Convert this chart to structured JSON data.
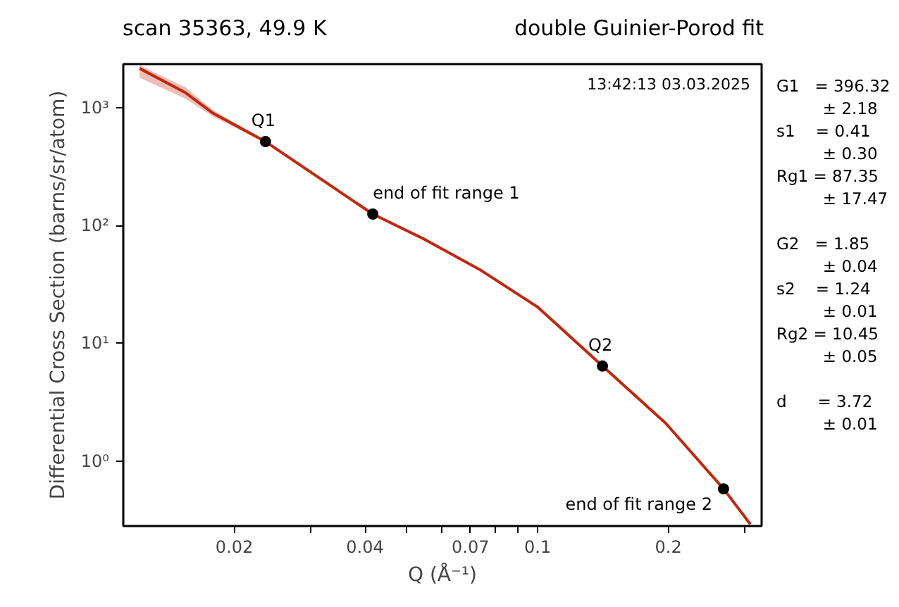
{
  "chart_data": {
    "type": "line",
    "title": "scan 35363, 49.9 K",
    "subtitle": "double Guinier-Porod fit",
    "xlabel": "Q (Å⁻¹)",
    "ylabel": "Differential Cross Section (barns/sr/atom)",
    "log": "xy",
    "grid": false,
    "marker": "none",
    "line_style": "solid",
    "xlim": [
      0.0111,
      0.328
    ],
    "ylim": [
      0.28,
      2350
    ],
    "xticks": [
      0.02,
      {
        "value": 0.03,
        "label": null
      },
      0.04,
      {
        "value": 0.05,
        "label": null
      },
      {
        "value": 0.06,
        "label": null
      },
      0.07,
      {
        "value": 0.08,
        "label": null
      },
      {
        "value": 0.09,
        "label": null
      },
      0.1,
      0.2,
      {
        "value": 0.3,
        "label": null
      }
    ],
    "yticks": [
      {
        "value": 1,
        "label": "10⁰"
      },
      {
        "value": 10,
        "label": "10¹"
      },
      {
        "value": 100,
        "label": "10²"
      },
      {
        "value": 1000,
        "label": "10³"
      }
    ],
    "series": [
      {
        "color": "#c0280f",
        "x": [
          0.0121,
          0.0154,
          0.0179,
          0.0236,
          0.0417,
          0.055,
          0.0741,
          0.1,
          0.141,
          0.197,
          0.268,
          0.309
        ],
        "values": [
          2160,
          1350,
          895,
          516,
          125,
          76,
          41.5,
          20.3,
          6.4,
          2.1,
          0.58,
          0.29
        ],
        "lower": [
          1800,
          1200,
          840,
          500,
          125,
          76,
          41.5,
          20.3,
          6.4,
          2.1,
          0.56,
          0.29
        ],
        "upper": [
          2300,
          1500,
          950,
          530,
          125,
          76,
          41.5,
          20.3,
          6.4,
          2.1,
          0.6,
          0.29
        ]
      },
      {
        "type": "scatter",
        "marker": "circle",
        "color": "#000000",
        "x": [
          0.0236,
          0.0417,
          0.141,
          0.268
        ],
        "values": [
          516,
          125,
          6.4,
          0.58
        ]
      }
    ],
    "annotations": [
      "13:42:13 03.03.2025",
      "G1   = 396.32\n         ± 2.18\ns1    = 0.41\n         ± 0.30\nRg1 = 87.35\n         ± 17.47",
      "G2   = 1.85\n         ± 0.04\ns2    = 1.24\n         ± 0.01\nRg2 = 10.45\n         ± 0.05",
      "d      = 3.72\n         ± 0.01",
      {
        "text": "Q1",
        "x": 0.0236,
        "y": 516
      },
      {
        "text": "end of fit range 1",
        "x": 0.0417,
        "y": 125
      },
      {
        "text": "Q2",
        "x": 0.141,
        "y": 6.4
      },
      {
        "text": "end of fit range 2",
        "x": 0.268,
        "y": 0.58
      }
    ]
  }
}
